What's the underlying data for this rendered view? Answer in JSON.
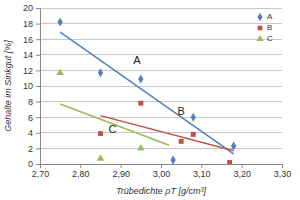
{
  "chart_data": {
    "type": "scatter",
    "x_label": "Trübedichte ρT [g/cm³]",
    "y_label": "Gehalte im Sinkgut [%]",
    "xlim": [
      2.7,
      3.3
    ],
    "xticks": [
      {
        "value": 2.7,
        "label": "2,70"
      },
      {
        "value": 2.8,
        "label": "2,80"
      },
      {
        "value": 2.9,
        "label": "2,90"
      },
      {
        "value": 3.0,
        "label": "3,00"
      },
      {
        "value": 3.1,
        "label": "3,10"
      },
      {
        "value": 3.2,
        "label": "3,20"
      },
      {
        "value": 3.3,
        "label": "3,30"
      }
    ],
    "ylim": [
      0,
      20
    ],
    "yticks": [
      0,
      2,
      4,
      6,
      8,
      10,
      12,
      14,
      16,
      18,
      20
    ],
    "grid": true,
    "legend": "upper right",
    "series": [
      {
        "name": "A",
        "color": "#4f81bd",
        "marker": "diamond",
        "x": [
          2.75,
          2.85,
          2.95,
          3.03,
          3.08,
          3.18
        ],
        "values": [
          18.2,
          11.7,
          10.9,
          0.5,
          6.0,
          2.3
        ],
        "trend": {
          "x": [
            2.75,
            3.18
          ],
          "values": [
            16.9,
            1.3
          ]
        }
      },
      {
        "name": "B",
        "color": "#c0504d",
        "marker": "square",
        "x": [
          2.85,
          2.95,
          3.05,
          3.08,
          3.17
        ],
        "values": [
          3.9,
          7.8,
          2.9,
          3.8,
          0.2
        ],
        "trend": {
          "x": [
            2.85,
            3.18
          ],
          "values": [
            6.2,
            1.7
          ]
        }
      },
      {
        "name": "C",
        "color": "#9bbb59",
        "marker": "triangle",
        "x": [
          2.75,
          2.85,
          2.95
        ],
        "values": [
          11.7,
          0.7,
          2.0
        ],
        "trend": {
          "x": [
            2.75,
            3.02
          ],
          "values": [
            7.7,
            2.4
          ]
        }
      }
    ],
    "annotations": [
      {
        "text": "A",
        "x": 2.94,
        "y": 13.2
      },
      {
        "text": "B",
        "x": 3.05,
        "y": 6.6
      },
      {
        "text": "C",
        "x": 2.88,
        "y": 4.4
      }
    ]
  }
}
